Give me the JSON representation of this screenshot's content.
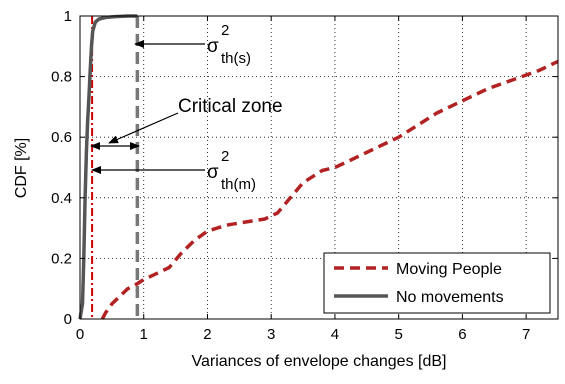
{
  "chart_data": {
    "type": "line",
    "xlabel": "Variances of envelope changes [dB]",
    "ylabel": "CDF [%]",
    "xlim": [
      0,
      7.5
    ],
    "ylim": [
      0,
      1
    ],
    "xticks": [
      0,
      1,
      2,
      3,
      4,
      5,
      6,
      7
    ],
    "yticks": [
      0,
      0.2,
      0.4,
      0.6,
      0.8,
      1
    ],
    "xtick_labels": [
      "0",
      "1",
      "2",
      "3",
      "4",
      "5",
      "6",
      "7"
    ],
    "ytick_labels": [
      "0",
      "0.2",
      "0.4",
      "0.6",
      "0.8",
      "1"
    ],
    "grid": true,
    "legend_position": "bottom-right",
    "series": [
      {
        "name": "Moving People",
        "color": "#b22222",
        "style": "dashed",
        "x": [
          0.35,
          0.4,
          0.5,
          0.65,
          0.75,
          0.85,
          1.0,
          1.2,
          1.4,
          1.6,
          1.8,
          2.0,
          2.3,
          2.6,
          2.9,
          3.1,
          3.3,
          3.5,
          3.8,
          4.0,
          4.3,
          4.6,
          5.0,
          5.3,
          5.6,
          6.0,
          6.4,
          6.8,
          7.2,
          7.5
        ],
        "y": [
          0.0,
          0.02,
          0.05,
          0.08,
          0.1,
          0.11,
          0.13,
          0.15,
          0.17,
          0.22,
          0.26,
          0.29,
          0.31,
          0.32,
          0.33,
          0.35,
          0.4,
          0.45,
          0.49,
          0.5,
          0.53,
          0.56,
          0.6,
          0.64,
          0.68,
          0.72,
          0.76,
          0.79,
          0.82,
          0.85
        ]
      },
      {
        "name": "No movements",
        "color": "#555555",
        "style": "solid",
        "x": [
          0.0,
          0.04,
          0.06,
          0.08,
          0.1,
          0.12,
          0.14,
          0.16,
          0.18,
          0.2,
          0.24,
          0.3,
          0.4,
          0.55,
          0.75,
          0.9
        ],
        "y": [
          0.0,
          0.05,
          0.2,
          0.4,
          0.55,
          0.65,
          0.73,
          0.82,
          0.9,
          0.95,
          0.98,
          0.99,
          0.995,
          0.998,
          1.0,
          1.0
        ]
      }
    ],
    "reference_lines": [
      {
        "x": 0.19,
        "color": "#cc0000",
        "style": "dashdot",
        "label": "th(m)"
      },
      {
        "x": 0.9,
        "color": "#777777",
        "style": "dashed",
        "label": "th(s)"
      }
    ],
    "annotations": {
      "sigma_symbol": "σ",
      "superscript": "2",
      "sub_s": "th(s)",
      "sub_m": "th(m)",
      "critical_zone": "Critical zone"
    }
  }
}
